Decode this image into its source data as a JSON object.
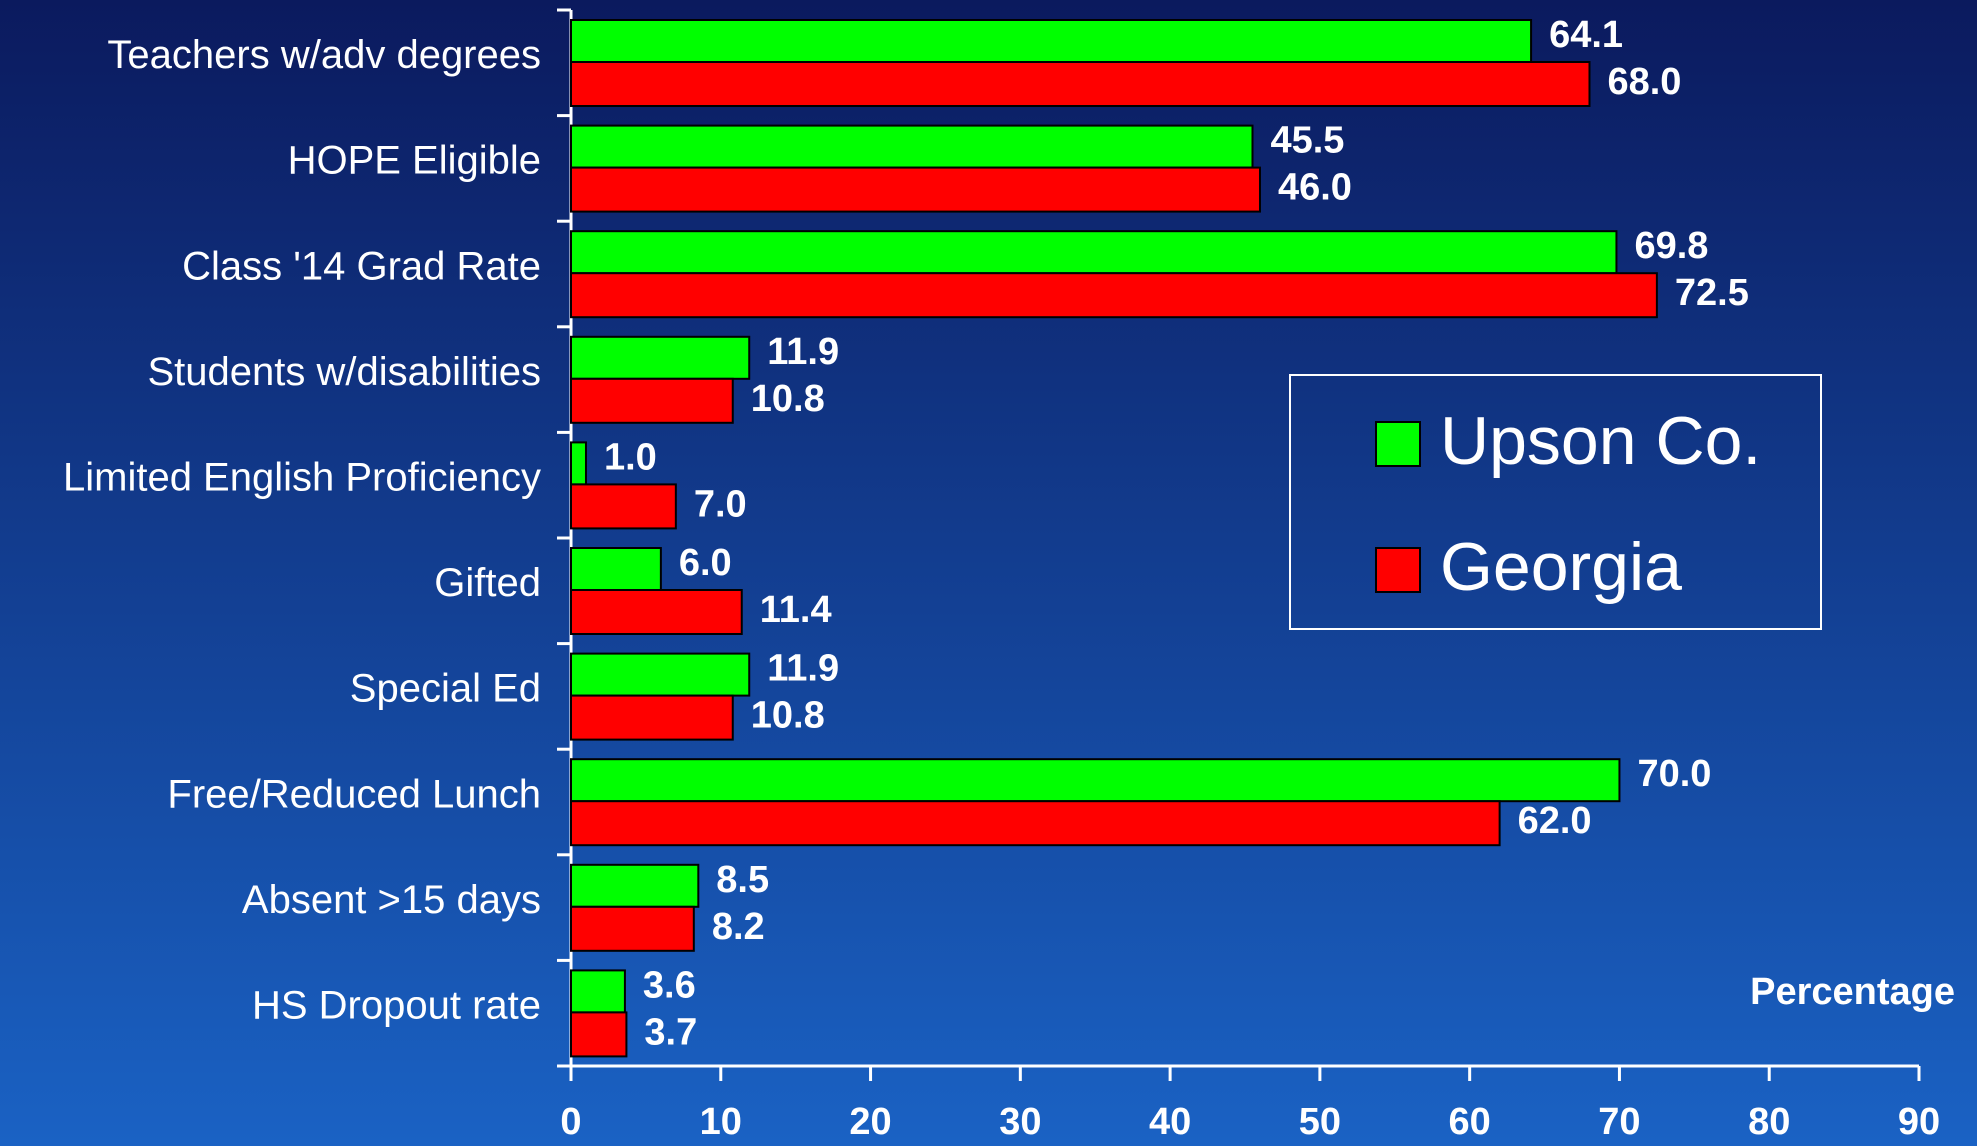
{
  "chart_data": {
    "type": "bar",
    "orientation": "horizontal",
    "x_axis_label": "Percentage",
    "categories": [
      "Teachers w/adv degrees",
      "HOPE Eligible",
      "Class '14 Grad Rate",
      "Students w/disabilities",
      "Limited English Proficiency",
      "Gifted",
      "Special Ed",
      "Free/Reduced Lunch",
      "Absent >15 days",
      "HS Dropout rate"
    ],
    "series": [
      {
        "name": "Upson Co.",
        "color": "#00ff00",
        "values": [
          64.1,
          45.5,
          69.8,
          11.9,
          1.0,
          6.0,
          11.9,
          70.0,
          8.5,
          3.6
        ],
        "value_labels": [
          "64.1",
          "45.5",
          "69.8",
          "11.9",
          "1.0",
          "6.0",
          "11.9",
          "70.0",
          "8.5",
          "3.6"
        ]
      },
      {
        "name": "Georgia",
        "color": "#ff0000",
        "values": [
          68.0,
          46.0,
          72.5,
          10.8,
          7.0,
          11.4,
          10.8,
          62.0,
          8.2,
          3.7
        ],
        "value_labels": [
          "68.0",
          "46.0",
          "72.5",
          "10.8",
          "7.0",
          "11.4",
          "10.8",
          "62.0",
          "8.2",
          "3.7"
        ]
      }
    ],
    "xlim": [
      0,
      90
    ],
    "xticks": [
      0,
      10,
      20,
      30,
      40,
      50,
      60,
      70,
      80,
      90
    ],
    "legend": "right"
  }
}
